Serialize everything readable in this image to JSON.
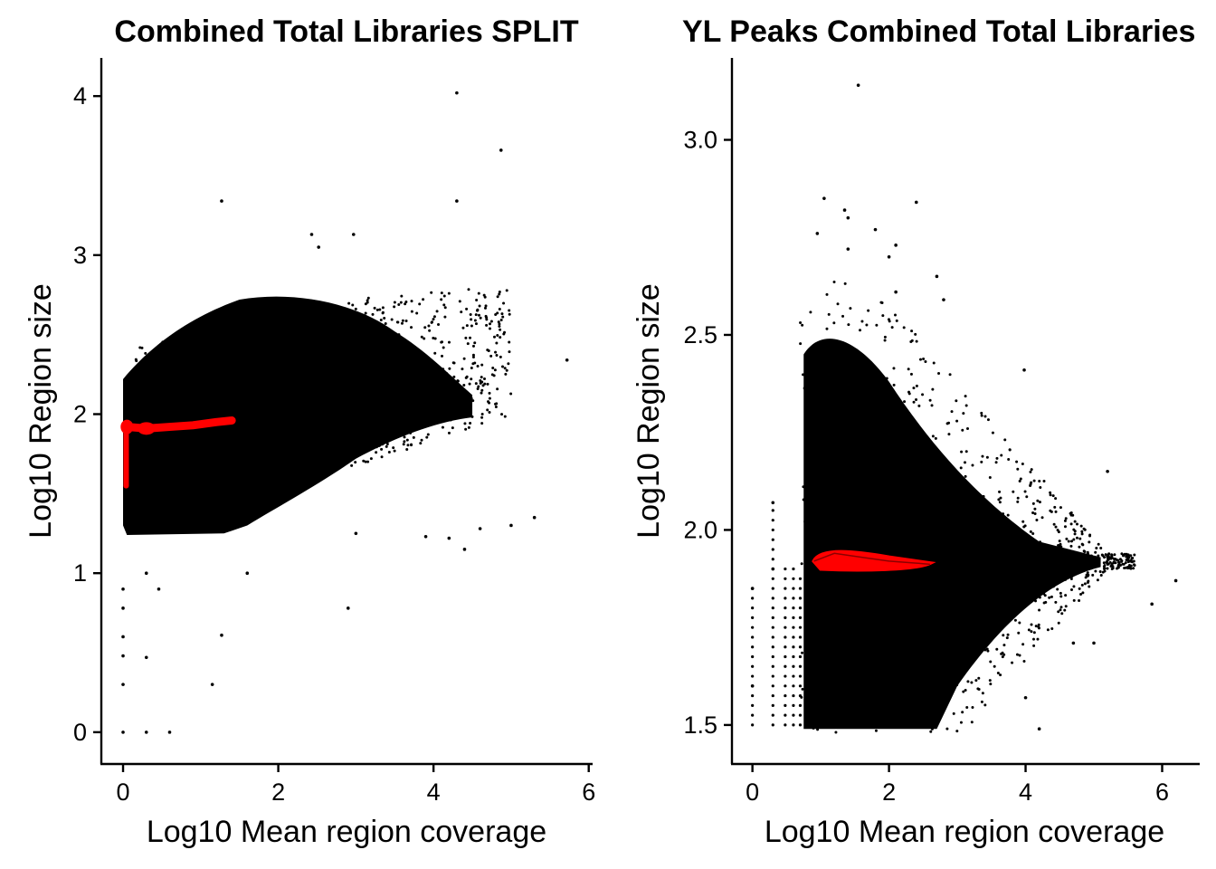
{
  "chart_data": [
    {
      "type": "scatter",
      "title": "Combined Total Libraries SPLIT",
      "xlabel": "Log10 Mean region coverage",
      "ylabel": "Log10 Region size",
      "xlim": [
        -0.28,
        6.05
      ],
      "ylim": [
        -0.2,
        4.24
      ],
      "x_ticks": [
        0,
        2,
        4,
        6
      ],
      "y_ticks": [
        0,
        1,
        2,
        3,
        4
      ],
      "x_tick_labels": [
        "0",
        "2",
        "4",
        "6"
      ],
      "y_tick_labels": [
        "0",
        "1",
        "2",
        "3",
        "4"
      ],
      "grid": false,
      "legend": "none",
      "point_color": "#000000",
      "overlay_color": "#ff0000",
      "outlier_points": [
        [
          4.3,
          4.02
        ],
        [
          4.87,
          3.66
        ],
        [
          4.3,
          3.34
        ],
        [
          1.27,
          3.34
        ],
        [
          2.97,
          3.13
        ],
        [
          2.43,
          3.13
        ],
        [
          2.52,
          3.05
        ],
        [
          5.72,
          2.34
        ],
        [
          5.3,
          1.35
        ],
        [
          0.3,
          0.47
        ],
        [
          1.27,
          0.61
        ],
        [
          2.9,
          0.78
        ],
        [
          1.15,
          0.3
        ],
        [
          0.0,
          0.3
        ],
        [
          0.0,
          0.0
        ],
        [
          0.3,
          0.0
        ],
        [
          0.6,
          0.0
        ],
        [
          0.0,
          0.48
        ],
        [
          0.0,
          0.6
        ],
        [
          0.0,
          0.78
        ],
        [
          0.0,
          0.9
        ],
        [
          4.4,
          1.15
        ],
        [
          4.2,
          1.22
        ],
        [
          3.9,
          1.23
        ],
        [
          3.0,
          1.25
        ],
        [
          0.46,
          0.9
        ],
        [
          0.3,
          1.0
        ],
        [
          1.6,
          1.0
        ],
        [
          4.6,
          1.28
        ],
        [
          5.0,
          1.3
        ]
      ],
      "red_overlay": [
        [
          0.05,
          1.92
        ],
        [
          0.3,
          1.91
        ],
        [
          0.6,
          1.92
        ],
        [
          0.9,
          1.93
        ],
        [
          1.2,
          1.95
        ],
        [
          1.4,
          1.96
        ],
        [
          0.04,
          1.7
        ],
        [
          0.04,
          1.55
        ]
      ]
    },
    {
      "type": "scatter",
      "title": "YL Peaks Combined Total Libraries",
      "xlabel": "Log10 Mean region coverage",
      "ylabel": "Log10 Region size",
      "xlim": [
        -0.3,
        6.55
      ],
      "ylim": [
        1.4,
        3.21
      ],
      "x_ticks": [
        0,
        2,
        4,
        6
      ],
      "y_ticks": [
        1.5,
        2.0,
        2.5,
        3.0
      ],
      "x_tick_labels": [
        "0",
        "2",
        "4",
        "6"
      ],
      "y_tick_labels": [
        "1.5",
        "2.0",
        "2.5",
        "3.0"
      ],
      "grid": false,
      "legend": "none",
      "point_color": "#000000",
      "overlay_color": "#ff0000",
      "outlier_points": [
        [
          1.55,
          3.14
        ],
        [
          1.05,
          2.85
        ],
        [
          1.35,
          2.82
        ],
        [
          1.4,
          2.8
        ],
        [
          2.4,
          2.84
        ],
        [
          0.95,
          2.76
        ],
        [
          1.8,
          2.77
        ],
        [
          1.4,
          2.72
        ],
        [
          2.1,
          2.73
        ],
        [
          2.0,
          2.7
        ],
        [
          2.7,
          2.65
        ],
        [
          2.1,
          2.61
        ],
        [
          2.8,
          2.59
        ],
        [
          3.98,
          2.41
        ],
        [
          5.2,
          2.15
        ],
        [
          6.2,
          1.87
        ],
        [
          5.85,
          1.81
        ],
        [
          5.0,
          1.71
        ],
        [
          4.7,
          1.71
        ],
        [
          4.0,
          1.57
        ],
        [
          4.2,
          1.49
        ],
        [
          0.3,
          2.07
        ],
        [
          0.0,
          1.85
        ],
        [
          0.0,
          1.6
        ],
        [
          0.3,
          1.9
        ]
      ],
      "red_overlay": [
        [
          0.9,
          1.92
        ],
        [
          1.2,
          1.94
        ],
        [
          1.6,
          1.93
        ],
        [
          2.0,
          1.92
        ],
        [
          2.4,
          1.915
        ],
        [
          2.6,
          1.912
        ]
      ]
    }
  ]
}
